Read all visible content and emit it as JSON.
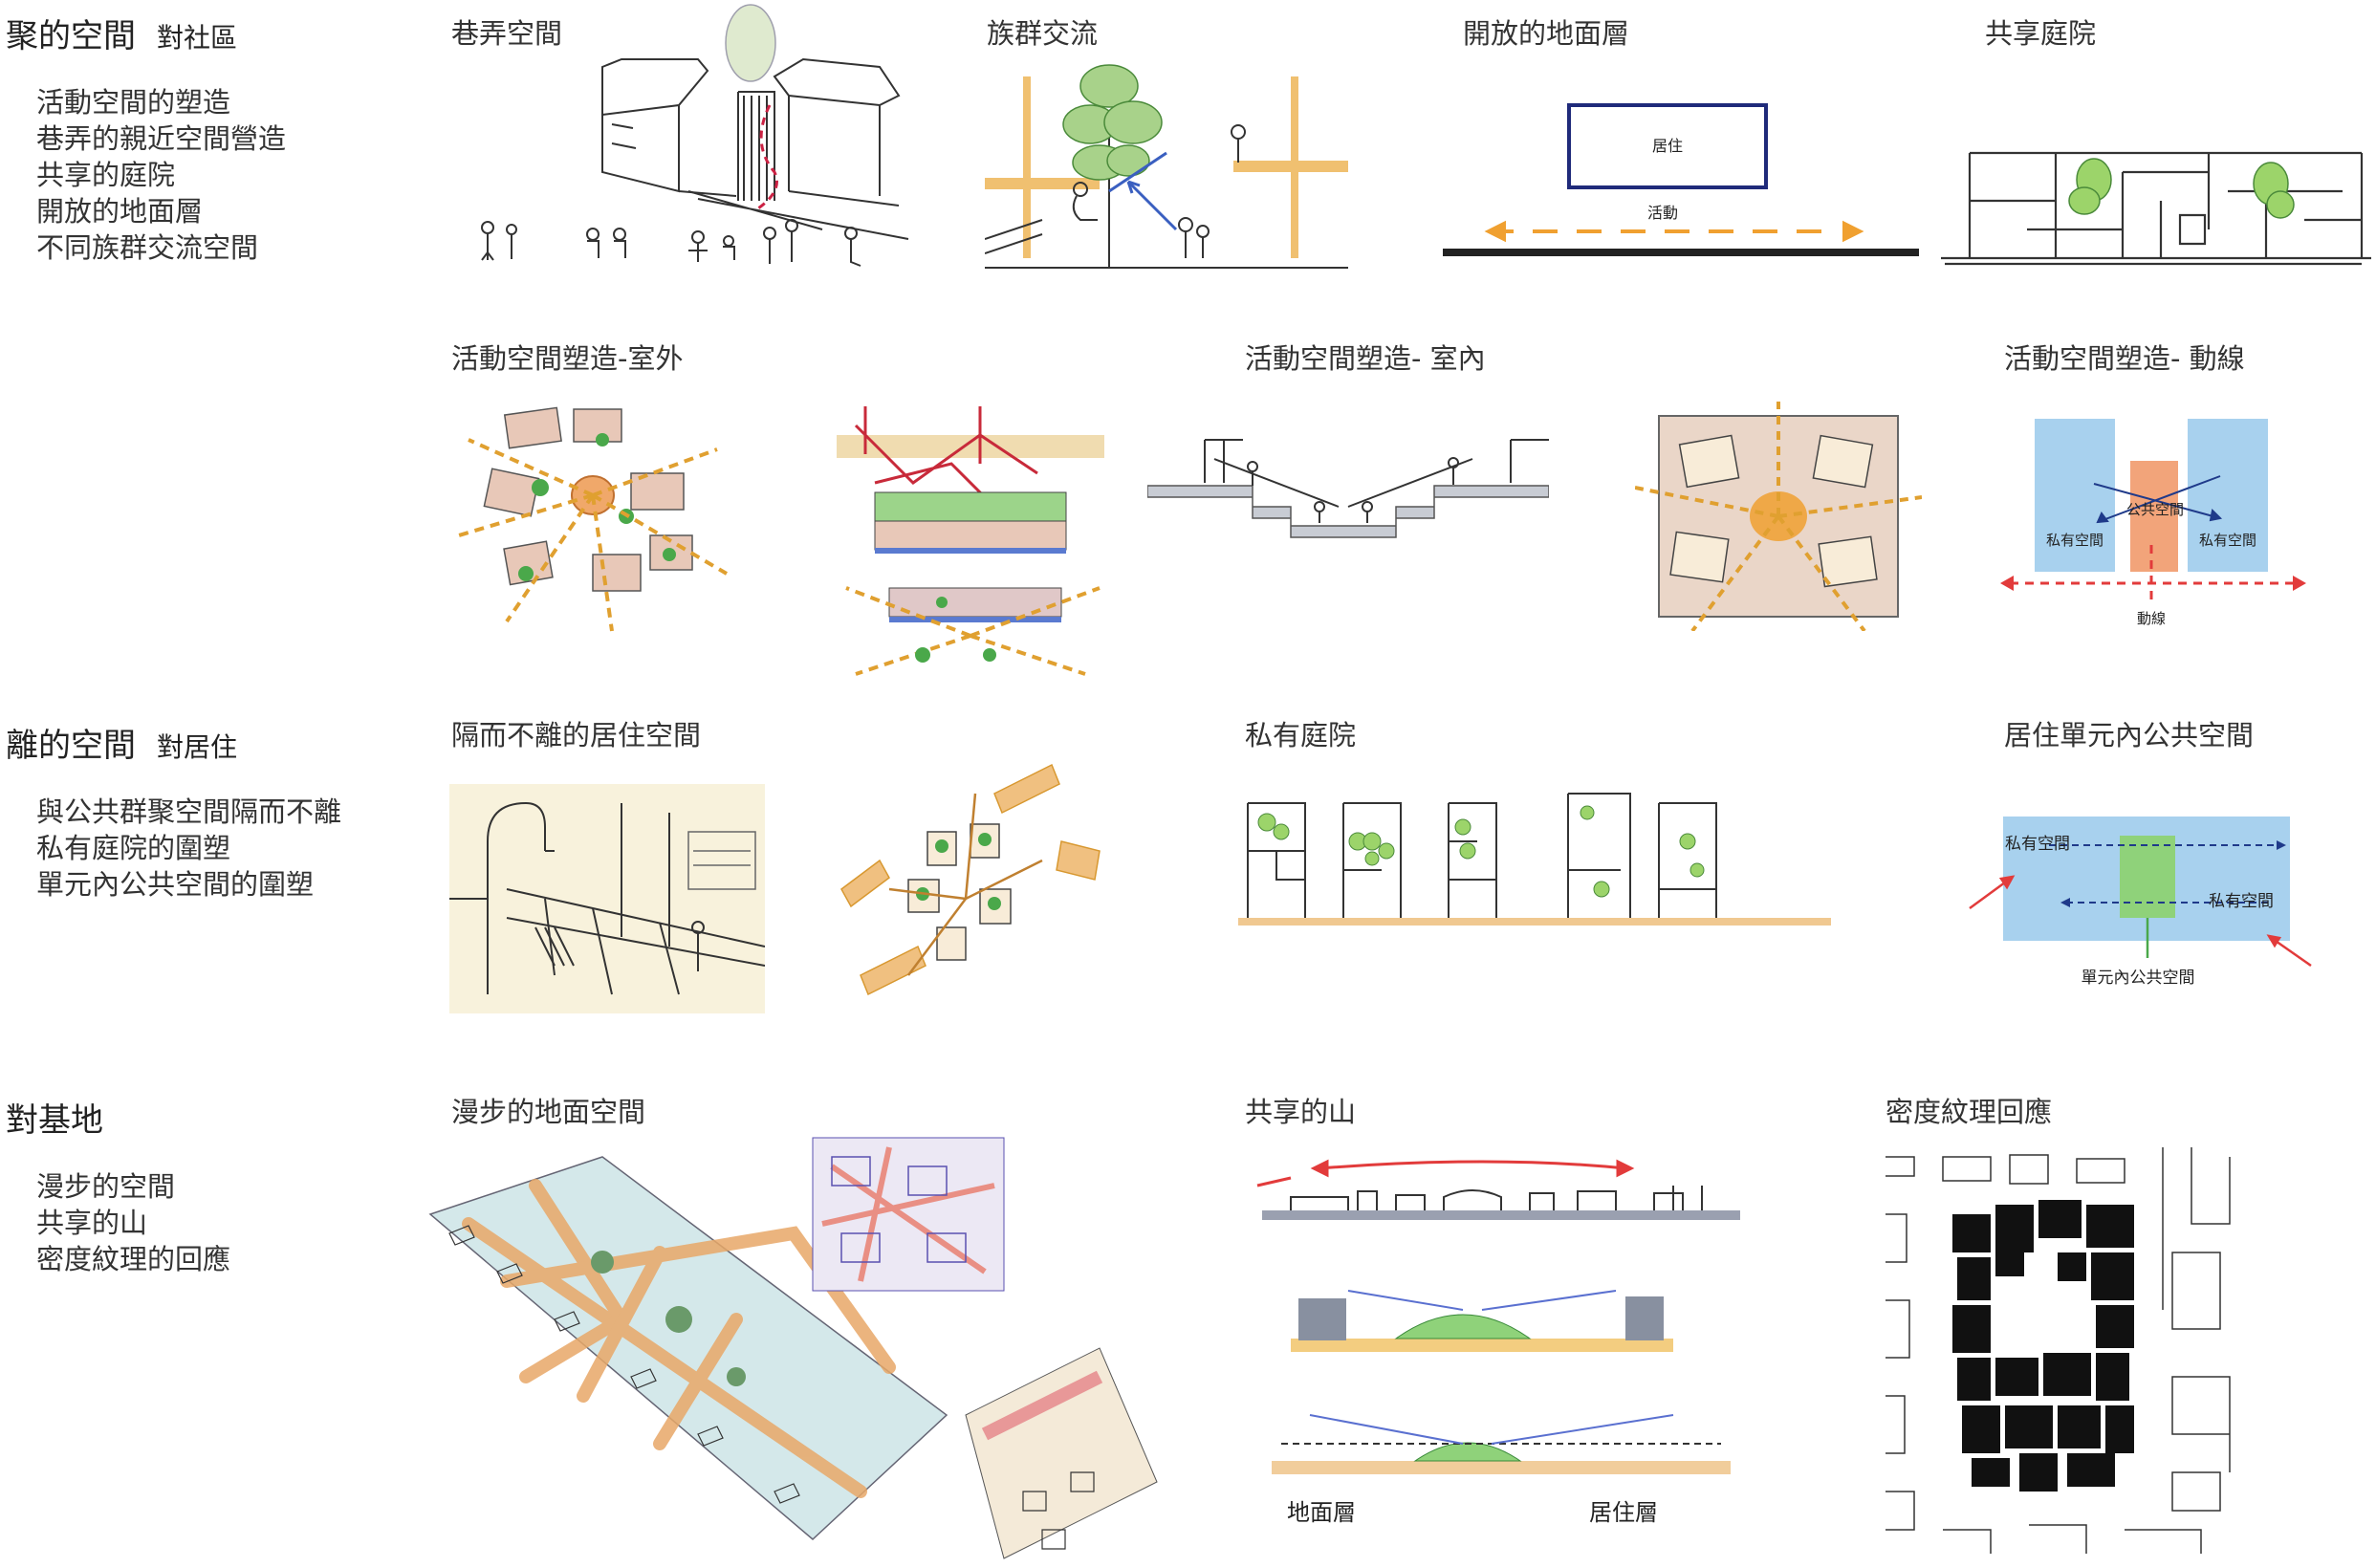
{
  "section1": {
    "title": "聚的空間",
    "subtitle": "對社區",
    "bullets": [
      "活動空間的塑造",
      "巷弄的親近空間營造",
      "共享的庭院",
      "開放的地面層",
      "不同族群交流空間"
    ]
  },
  "section2": {
    "title": "離的空間",
    "subtitle": "對居住",
    "bullets": [
      "與公共群聚空間隔而不離",
      "私有庭院的圍塑",
      "單元內公共空間的圍塑"
    ]
  },
  "section3": {
    "title": "對基地",
    "bullets": [
      "漫步的空間",
      "共享的山",
      "密度紋理的回應"
    ]
  },
  "captions": {
    "alley": "巷弄空間",
    "ethnic": "族群交流",
    "open_ground": "開放的地面層",
    "courtyard": "共享庭院",
    "outdoor": "活動空間塑造-室外",
    "indoor": "活動空間塑造- 室內",
    "circulation": "活動空間塑造- 動線",
    "separated": "隔而不離的居住空間",
    "private_yard": "私有庭院",
    "unit_public": "居住單元內公共空間",
    "stroll": "漫步的地面空間",
    "shared_mountain": "共享的山",
    "density": "密度紋理回應"
  },
  "diagram_open_ground": {
    "box_label": "居住",
    "arrow_label": "活動"
  },
  "diagram_circulation": {
    "center_label": "公共空間",
    "left_label": "私有空間",
    "right_label": "私有空間",
    "flow_label": "動線"
  },
  "diagram_unit": {
    "left_label": "私有空間",
    "right_label": "私有空間",
    "bottom_label": "單元內公共空間"
  },
  "diagram_section": {
    "left_label": "地面層",
    "right_label": "居住層"
  },
  "colors": {
    "navy": "#1f2a7a",
    "orange": "#f0a030",
    "sky": "#a8d1ee",
    "salmon": "#f2a47a",
    "green": "#8fd27a",
    "red": "#e23b3b"
  }
}
